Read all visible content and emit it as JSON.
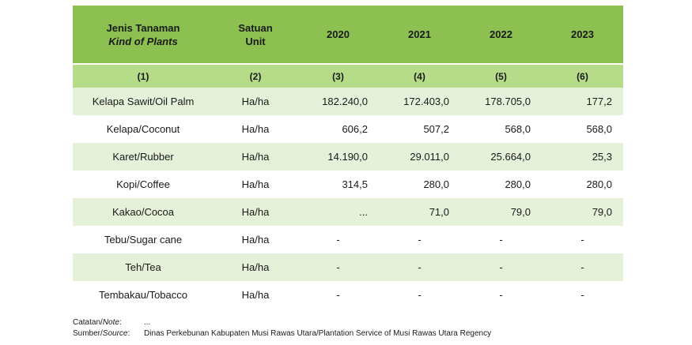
{
  "header": {
    "col1_id": "Jenis Tanaman",
    "col1_en": "Kind of Plants",
    "col2_id": "Satuan",
    "col2_en": "Unit",
    "years": [
      "2020",
      "2021",
      "2022",
      "2023"
    ],
    "col_numbers": [
      "(1)",
      "(2)",
      "(3)",
      "(4)",
      "(5)",
      "(6)"
    ]
  },
  "rows": [
    {
      "plant": "Kelapa Sawit/Oil Palm",
      "unit": "Ha/ha",
      "v2020": "182.240,0",
      "v2021": "172.403,0",
      "v2022": "178.705,0",
      "v2023": "177,2"
    },
    {
      "plant": "Kelapa/Coconut",
      "unit": "Ha/ha",
      "v2020": "606,2",
      "v2021": "507,2",
      "v2022": "568,0",
      "v2023": "568,0"
    },
    {
      "plant": "Karet/Rubber",
      "unit": "Ha/ha",
      "v2020": "14.190,0",
      "v2021": "29.011,0",
      "v2022": "25.664,0",
      "v2023": "25,3"
    },
    {
      "plant": "Kopi/Coffee",
      "unit": "Ha/ha",
      "v2020": "314,5",
      "v2021": "280,0",
      "v2022": "280,0",
      "v2023": "280,0"
    },
    {
      "plant": "Kakao/Cocoa",
      "unit": "Ha/ha",
      "v2020": "...",
      "v2021": "71,0",
      "v2022": "79,0",
      "v2023": "79,0"
    },
    {
      "plant": "Tebu/Sugar cane",
      "unit": "Ha/ha",
      "v2020": "-",
      "v2021": "-",
      "v2022": "-",
      "v2023": "-"
    },
    {
      "plant": "Teh/Tea",
      "unit": "Ha/ha",
      "v2020": "-",
      "v2021": "-",
      "v2022": "-",
      "v2023": "-"
    },
    {
      "plant": "Tembakau/Tobacco",
      "unit": "Ha/ha",
      "v2020": "-",
      "v2021": "-",
      "v2022": "-",
      "v2023": "-"
    }
  ],
  "footer": {
    "note_label_id": "Catatan/",
    "note_label_en": "Note",
    "note_sep": ":",
    "note_text": "...",
    "source_label_id": "Sumber/",
    "source_label_en": "Source",
    "source_sep": ":",
    "source_text": "Dinas Perkebunan Kabupaten Musi Rawas Utara/Plantation Service of Musi Rawas Utara Regency"
  },
  "colors": {
    "header": "#8cc152",
    "subheader": "#b6dc8a",
    "row_odd": "#e6f1d9",
    "row_even": "#ffffff"
  }
}
